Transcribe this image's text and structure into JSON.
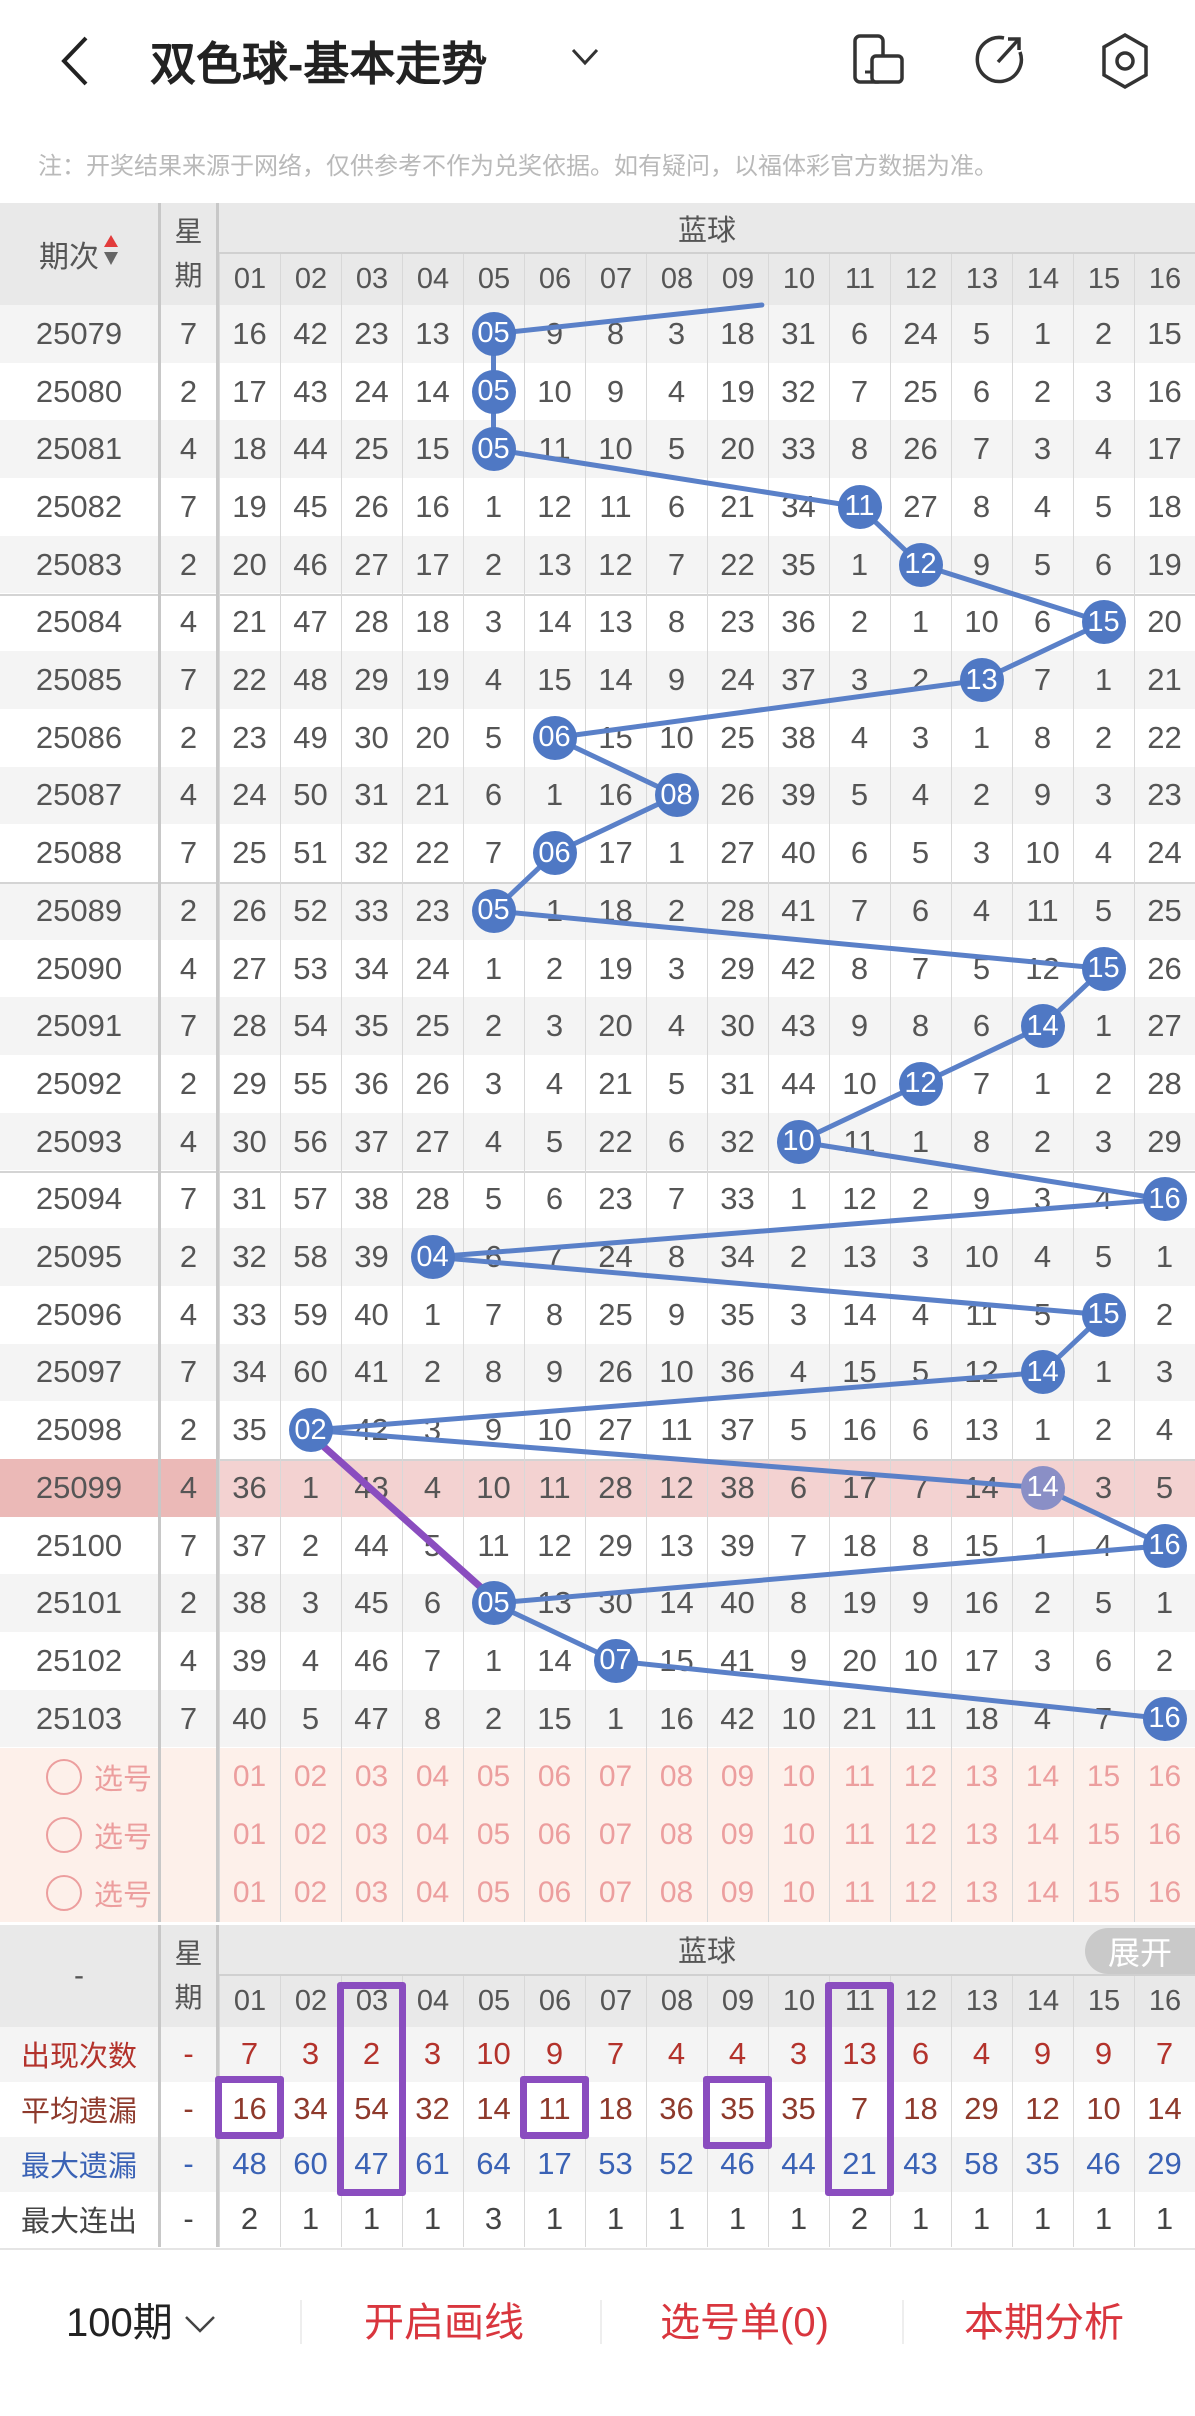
{
  "header": {
    "title": "双色球-基本走势",
    "back_icon": "chevron-left-icon",
    "dropdown_icon": "chevron-down-icon",
    "right_icons": [
      "device-icon",
      "share-icon",
      "settings-icon"
    ]
  },
  "notice": "注：开奖结果来源于网络，仅供参考不作为兑奖依据。如有疑问，以福体彩官方数据为准。",
  "table": {
    "period_header": "期次",
    "weekday_header": "星期",
    "group_header": "蓝球",
    "columns": [
      "01",
      "02",
      "03",
      "04",
      "05",
      "06",
      "07",
      "08",
      "09",
      "10",
      "11",
      "12",
      "13",
      "14",
      "15",
      "16"
    ],
    "highlight_period": "25099",
    "rows": [
      {
        "period": "25079",
        "weekday": "7",
        "hit": 5,
        "values": [
          "16",
          "42",
          "23",
          "13",
          "05",
          "9",
          "8",
          "3",
          "18",
          "31",
          "6",
          "24",
          "5",
          "1",
          "2",
          "15"
        ]
      },
      {
        "period": "25080",
        "weekday": "2",
        "hit": 5,
        "values": [
          "17",
          "43",
          "24",
          "14",
          "05",
          "10",
          "9",
          "4",
          "19",
          "32",
          "7",
          "25",
          "6",
          "2",
          "3",
          "16"
        ]
      },
      {
        "period": "25081",
        "weekday": "4",
        "hit": 5,
        "values": [
          "18",
          "44",
          "25",
          "15",
          "05",
          "11",
          "10",
          "5",
          "20",
          "33",
          "8",
          "26",
          "7",
          "3",
          "4",
          "17"
        ]
      },
      {
        "period": "25082",
        "weekday": "7",
        "hit": 11,
        "values": [
          "19",
          "45",
          "26",
          "16",
          "1",
          "12",
          "11",
          "6",
          "21",
          "34",
          "11",
          "27",
          "8",
          "4",
          "5",
          "18"
        ]
      },
      {
        "period": "25083",
        "weekday": "2",
        "hit": 12,
        "values": [
          "20",
          "46",
          "27",
          "17",
          "2",
          "13",
          "12",
          "7",
          "22",
          "35",
          "1",
          "12",
          "9",
          "5",
          "6",
          "19"
        ]
      },
      {
        "period": "25084",
        "weekday": "4",
        "hit": 15,
        "values": [
          "21",
          "47",
          "28",
          "18",
          "3",
          "14",
          "13",
          "8",
          "23",
          "36",
          "2",
          "1",
          "10",
          "6",
          "15",
          "20"
        ]
      },
      {
        "period": "25085",
        "weekday": "7",
        "hit": 13,
        "values": [
          "22",
          "48",
          "29",
          "19",
          "4",
          "15",
          "14",
          "9",
          "24",
          "37",
          "3",
          "2",
          "13",
          "7",
          "1",
          "21"
        ]
      },
      {
        "period": "25086",
        "weekday": "2",
        "hit": 6,
        "values": [
          "23",
          "49",
          "30",
          "20",
          "5",
          "06",
          "15",
          "10",
          "25",
          "38",
          "4",
          "3",
          "1",
          "8",
          "2",
          "22"
        ]
      },
      {
        "period": "25087",
        "weekday": "4",
        "hit": 8,
        "values": [
          "24",
          "50",
          "31",
          "21",
          "6",
          "1",
          "16",
          "08",
          "26",
          "39",
          "5",
          "4",
          "2",
          "9",
          "3",
          "23"
        ]
      },
      {
        "period": "25088",
        "weekday": "7",
        "hit": 6,
        "values": [
          "25",
          "51",
          "32",
          "22",
          "7",
          "06",
          "17",
          "1",
          "27",
          "40",
          "6",
          "5",
          "3",
          "10",
          "4",
          "24"
        ]
      },
      {
        "period": "25089",
        "weekday": "2",
        "hit": 5,
        "values": [
          "26",
          "52",
          "33",
          "23",
          "05",
          "1",
          "18",
          "2",
          "28",
          "41",
          "7",
          "6",
          "4",
          "11",
          "5",
          "25"
        ]
      },
      {
        "period": "25090",
        "weekday": "4",
        "hit": 15,
        "values": [
          "27",
          "53",
          "34",
          "24",
          "1",
          "2",
          "19",
          "3",
          "29",
          "42",
          "8",
          "7",
          "5",
          "12",
          "15",
          "26"
        ]
      },
      {
        "period": "25091",
        "weekday": "7",
        "hit": 14,
        "values": [
          "28",
          "54",
          "35",
          "25",
          "2",
          "3",
          "20",
          "4",
          "30",
          "43",
          "9",
          "8",
          "6",
          "14",
          "1",
          "27"
        ]
      },
      {
        "period": "25092",
        "weekday": "2",
        "hit": 12,
        "values": [
          "29",
          "55",
          "36",
          "26",
          "3",
          "4",
          "21",
          "5",
          "31",
          "44",
          "10",
          "12",
          "7",
          "1",
          "2",
          "28"
        ]
      },
      {
        "period": "25093",
        "weekday": "4",
        "hit": 10,
        "values": [
          "30",
          "56",
          "37",
          "27",
          "4",
          "5",
          "22",
          "6",
          "32",
          "10",
          "11",
          "1",
          "8",
          "2",
          "3",
          "29"
        ]
      },
      {
        "period": "25094",
        "weekday": "7",
        "hit": 16,
        "values": [
          "31",
          "57",
          "38",
          "28",
          "5",
          "6",
          "23",
          "7",
          "33",
          "1",
          "12",
          "2",
          "9",
          "3",
          "4",
          "16"
        ]
      },
      {
        "period": "25095",
        "weekday": "2",
        "hit": 4,
        "values": [
          "32",
          "58",
          "39",
          "04",
          "6",
          "7",
          "24",
          "8",
          "34",
          "2",
          "13",
          "3",
          "10",
          "4",
          "5",
          "1"
        ]
      },
      {
        "period": "25096",
        "weekday": "4",
        "hit": 15,
        "values": [
          "33",
          "59",
          "40",
          "1",
          "7",
          "8",
          "25",
          "9",
          "35",
          "3",
          "14",
          "4",
          "11",
          "5",
          "15",
          "2"
        ]
      },
      {
        "period": "25097",
        "weekday": "7",
        "hit": 14,
        "values": [
          "34",
          "60",
          "41",
          "2",
          "8",
          "9",
          "26",
          "10",
          "36",
          "4",
          "15",
          "5",
          "12",
          "14",
          "1",
          "3"
        ]
      },
      {
        "period": "25098",
        "weekday": "2",
        "hit": 2,
        "values": [
          "35",
          "02",
          "42",
          "3",
          "9",
          "10",
          "27",
          "11",
          "37",
          "5",
          "16",
          "6",
          "13",
          "1",
          "2",
          "4"
        ]
      },
      {
        "period": "25099",
        "weekday": "4",
        "hit": 14,
        "values": [
          "36",
          "1",
          "43",
          "4",
          "10",
          "11",
          "28",
          "12",
          "38",
          "6",
          "17",
          "7",
          "14",
          "14",
          "3",
          "5"
        ]
      },
      {
        "period": "25100",
        "weekday": "7",
        "hit": 16,
        "values": [
          "37",
          "2",
          "44",
          "5",
          "11",
          "12",
          "29",
          "13",
          "39",
          "7",
          "18",
          "8",
          "15",
          "1",
          "4",
          "16"
        ]
      },
      {
        "period": "25101",
        "weekday": "2",
        "hit": 5,
        "values": [
          "38",
          "3",
          "45",
          "6",
          "05",
          "13",
          "30",
          "14",
          "40",
          "8",
          "19",
          "9",
          "16",
          "2",
          "5",
          "1"
        ]
      },
      {
        "period": "25102",
        "weekday": "4",
        "hit": 7,
        "values": [
          "39",
          "4",
          "46",
          "7",
          "1",
          "14",
          "07",
          "15",
          "41",
          "9",
          "20",
          "10",
          "17",
          "3",
          "6",
          "2"
        ]
      },
      {
        "period": "25103",
        "weekday": "7",
        "hit": 16,
        "values": [
          "40",
          "5",
          "47",
          "8",
          "2",
          "15",
          "1",
          "16",
          "42",
          "10",
          "21",
          "11",
          "18",
          "4",
          "7",
          "16"
        ]
      }
    ],
    "select_rows": [
      {
        "label": "选号",
        "icon": "radio-circle-icon"
      },
      {
        "label": "选号",
        "icon": "radio-circle-icon"
      },
      {
        "label": "选号",
        "icon": "radio-circle-icon"
      }
    ]
  },
  "stats": {
    "corner": "-",
    "weekday_header": "星期",
    "group_header": "蓝球",
    "expand_label": "展开",
    "rows": [
      {
        "label": "出现次数",
        "weekday": "-",
        "color": "#b3322b",
        "values": [
          "7",
          "3",
          "2",
          "3",
          "10",
          "9",
          "7",
          "4",
          "4",
          "3",
          "13",
          "6",
          "4",
          "9",
          "9",
          "7"
        ]
      },
      {
        "label": "平均遗漏",
        "weekday": "-",
        "color": "#8e3a2c",
        "values": [
          "16",
          "34",
          "54",
          "32",
          "14",
          "11",
          "18",
          "36",
          "35",
          "35",
          "7",
          "18",
          "29",
          "12",
          "10",
          "14"
        ]
      },
      {
        "label": "最大遗漏",
        "weekday": "-",
        "color": "#3a62b5",
        "values": [
          "48",
          "60",
          "47",
          "61",
          "64",
          "17",
          "53",
          "52",
          "46",
          "44",
          "21",
          "43",
          "58",
          "35",
          "46",
          "29"
        ]
      },
      {
        "label": "最大连出",
        "weekday": "-",
        "color": "#444444",
        "values": [
          "2",
          "1",
          "1",
          "1",
          "3",
          "1",
          "1",
          "1",
          "1",
          "1",
          "2",
          "1",
          "1",
          "1",
          "1",
          "1"
        ]
      }
    ]
  },
  "footer": {
    "period_select": "100期",
    "draw_lines": "开启画线",
    "pick_list": "选号单(0)",
    "analysis": "本期分析"
  },
  "colors": {
    "ball": "#4f78c4",
    "line": "#5a80c8",
    "annotation": "#8a4dbf",
    "accent_red": "#d9363e"
  }
}
